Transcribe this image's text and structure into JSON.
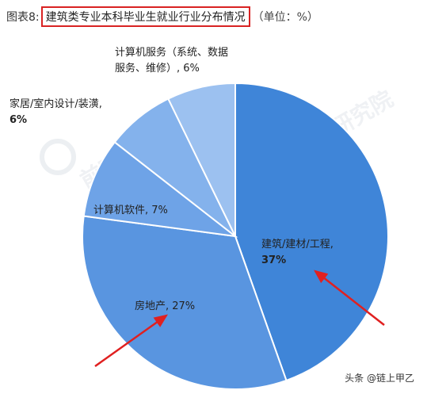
{
  "title": {
    "prefix": "图表8:",
    "main": "建筑类专业本科毕业生就业行业分布情况",
    "unit": "（单位：%）"
  },
  "watermark": {
    "text": "前瞻产业研究院"
  },
  "source_tag": "头条 @链上甲乙",
  "chart_data": {
    "type": "pie",
    "title": "建筑类专业本科毕业生就业行业分布情况",
    "unit": "%",
    "start": "12 o'clock, clockwise",
    "slices": [
      {
        "label": "建筑/建材/工程",
        "value": 37,
        "color": "#3f85d8",
        "label_lines": [
          "建筑/建材/工程,",
          "37%"
        ]
      },
      {
        "label": "房地产",
        "value": 27,
        "color": "#5995e0",
        "label_lines": [
          "房地产, 27%"
        ]
      },
      {
        "label": "计算机软件",
        "value": 7,
        "color": "#6ea3e7",
        "label_lines": [
          "计算机软件, 7%"
        ]
      },
      {
        "label": "家居/室内设计/装潢",
        "value": 6,
        "color": "#84b2ec",
        "label_lines": [
          "家居/室内设计/装潢,",
          "6%"
        ]
      },
      {
        "label": "计算机服务（系统、数据服务、维修）",
        "value": 6,
        "color": "#9cc1f0",
        "label_lines": [
          "计算机服务（系统、数据",
          "服务、维修）, 6%"
        ]
      }
    ]
  }
}
